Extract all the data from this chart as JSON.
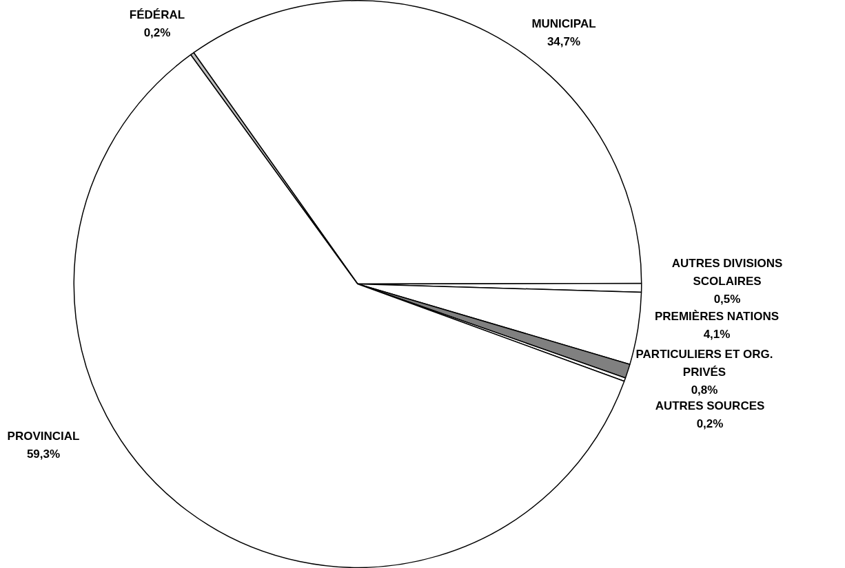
{
  "chart_data": {
    "type": "pie",
    "categories": [
      "MUNICIPAL",
      "AUTRES DIVISIONS SCOLAIRES",
      "PREMIÈRES NATIONS",
      "PARTICULIERS ET ORG. PRIVÉS",
      "AUTRES SOURCES",
      "PROVINCIAL",
      "FÉDÉRAL"
    ],
    "values": [
      34.7,
      0.5,
      4.1,
      0.8,
      0.2,
      59.3,
      0.2
    ],
    "value_labels": [
      "34,7%",
      "0,5%",
      "4,1%",
      "0,8%",
      "0,2%",
      "59,3%",
      "0,2%"
    ],
    "colors": [
      "#ffffff",
      "#ffffff",
      "#ffffff",
      "#808080",
      "#ffffff",
      "#ffffff",
      "#c0c0c0"
    ]
  }
}
